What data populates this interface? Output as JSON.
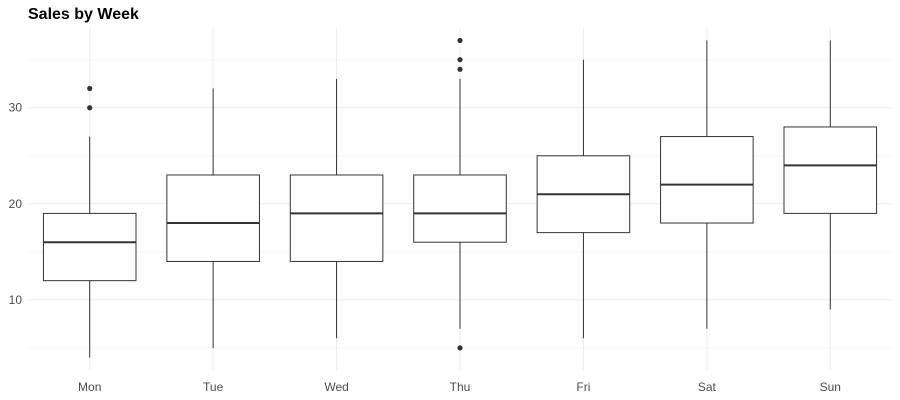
{
  "chart_data": {
    "type": "boxplot",
    "title": "Sales by Week",
    "xlabel": "",
    "ylabel": "",
    "categories": [
      "Mon",
      "Tue",
      "Wed",
      "Thu",
      "Fri",
      "Sat",
      "Sun"
    ],
    "boxes": [
      {
        "category": "Mon",
        "whisker_low": 4,
        "q1": 12,
        "median": 16,
        "q3": 19,
        "whisker_high": 27,
        "outliers": [
          30,
          32
        ]
      },
      {
        "category": "Tue",
        "whisker_low": 5,
        "q1": 14,
        "median": 18,
        "q3": 23,
        "whisker_high": 32,
        "outliers": []
      },
      {
        "category": "Wed",
        "whisker_low": 6,
        "q1": 14,
        "median": 19,
        "q3": 23,
        "whisker_high": 33,
        "outliers": []
      },
      {
        "category": "Thu",
        "whisker_low": 7,
        "q1": 16,
        "median": 19,
        "q3": 23,
        "whisker_high": 33,
        "outliers": [
          5,
          34,
          35,
          37
        ]
      },
      {
        "category": "Fri",
        "whisker_low": 6,
        "q1": 17,
        "median": 21,
        "q3": 25,
        "whisker_high": 35,
        "outliers": []
      },
      {
        "category": "Sat",
        "whisker_low": 7,
        "q1": 18,
        "median": 22,
        "q3": 27,
        "whisker_high": 37,
        "outliers": []
      },
      {
        "category": "Sun",
        "whisker_low": 9,
        "q1": 19,
        "median": 24,
        "q3": 28,
        "whisker_high": 37,
        "outliers": []
      }
    ],
    "y_ticks": [
      10,
      20,
      30
    ],
    "ylim": [
      2.7,
      38.3
    ],
    "grid": true,
    "legend": "none",
    "colors": {
      "box_fill": "#ffffff",
      "box_stroke": "#333333",
      "outlier": "#333333",
      "grid_major": "#ebebeb",
      "grid_minor": "#f5f5f5",
      "tick_text": "#4d4d4d"
    }
  }
}
